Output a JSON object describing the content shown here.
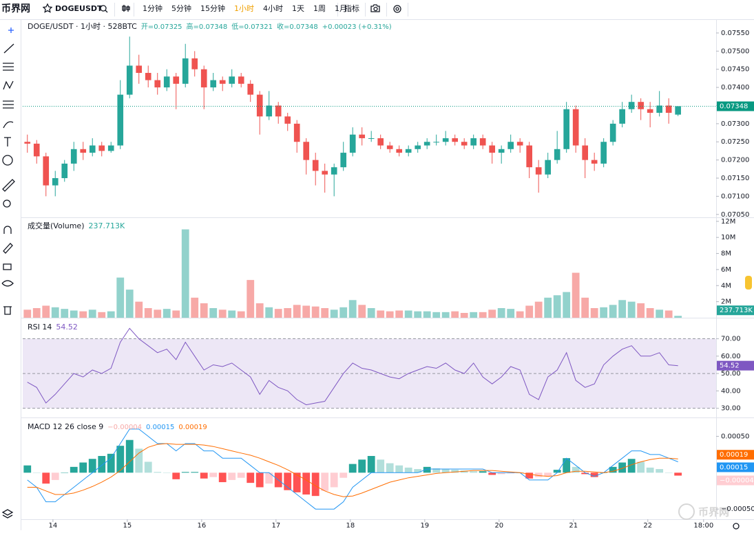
{
  "toolbar": {
    "logo": "币界网",
    "symbol": "DOGEUSDT",
    "intervals": [
      "1分钟",
      "5分钟",
      "15分钟",
      "1小时",
      "4小时",
      "1天",
      "1周",
      "1月"
    ],
    "active_interval": 3,
    "active_color": "#f0a000",
    "indicators": "指标"
  },
  "watermark": "币界网",
  "chart_data": [
    {
      "type": "candlestick",
      "title": "DOGE/USDT · 1小时 · 528BTC",
      "ohlc_text": [
        "开=0.07325",
        "高=0.07348",
        "低=0.07321",
        "收=0.07348",
        "+0.00023 (+0.31%)"
      ],
      "up_color": "#26a69a",
      "down_color": "#ef5350",
      "candles": [
        [
          0.0725,
          0.0727,
          0.0722,
          0.07245
        ],
        [
          0.07245,
          0.07255,
          0.0719,
          0.0721
        ],
        [
          0.0721,
          0.0722,
          0.071,
          0.0713
        ],
        [
          0.0713,
          0.0717,
          0.071,
          0.0715
        ],
        [
          0.0715,
          0.072,
          0.0714,
          0.0719
        ],
        [
          0.0719,
          0.0725,
          0.0717,
          0.0723
        ],
        [
          0.0723,
          0.0725,
          0.072,
          0.0722
        ],
        [
          0.0722,
          0.0726,
          0.0721,
          0.0724
        ],
        [
          0.0724,
          0.0725,
          0.0721,
          0.07225
        ],
        [
          0.07225,
          0.0725,
          0.0722,
          0.0724
        ],
        [
          0.0724,
          0.0742,
          0.0723,
          0.0738
        ],
        [
          0.0738,
          0.0754,
          0.0737,
          0.0746
        ],
        [
          0.0746,
          0.0749,
          0.0741,
          0.0744
        ],
        [
          0.0744,
          0.0746,
          0.074,
          0.0742
        ],
        [
          0.0742,
          0.0744,
          0.0738,
          0.074
        ],
        [
          0.074,
          0.0745,
          0.0739,
          0.0743
        ],
        [
          0.0743,
          0.0744,
          0.0734,
          0.0741
        ],
        [
          0.0741,
          0.0752,
          0.074,
          0.0748
        ],
        [
          0.0748,
          0.075,
          0.0743,
          0.0745
        ],
        [
          0.0745,
          0.0746,
          0.0734,
          0.074
        ],
        [
          0.074,
          0.0744,
          0.0739,
          0.0742
        ],
        [
          0.0742,
          0.0743,
          0.0739,
          0.0741
        ],
        [
          0.0741,
          0.0745,
          0.074,
          0.0743
        ],
        [
          0.0743,
          0.0744,
          0.074,
          0.0741
        ],
        [
          0.0741,
          0.0742,
          0.0736,
          0.0738
        ],
        [
          0.0738,
          0.0739,
          0.0727,
          0.0732
        ],
        [
          0.0732,
          0.0739,
          0.0731,
          0.0735
        ],
        [
          0.0735,
          0.0736,
          0.073,
          0.0732
        ],
        [
          0.0732,
          0.0733,
          0.0728,
          0.073
        ],
        [
          0.073,
          0.0731,
          0.0722,
          0.0725
        ],
        [
          0.0725,
          0.0726,
          0.0716,
          0.072
        ],
        [
          0.072,
          0.0722,
          0.0713,
          0.0717
        ],
        [
          0.0717,
          0.0719,
          0.0711,
          0.0716
        ],
        [
          0.0716,
          0.0719,
          0.071,
          0.0718
        ],
        [
          0.0718,
          0.0725,
          0.0717,
          0.0722
        ],
        [
          0.0722,
          0.0729,
          0.0721,
          0.0727
        ],
        [
          0.0727,
          0.0729,
          0.0724,
          0.0726
        ],
        [
          0.0726,
          0.0728,
          0.0725,
          0.0726
        ],
        [
          0.0726,
          0.0727,
          0.0723,
          0.0724
        ],
        [
          0.0724,
          0.0725,
          0.0722,
          0.0723
        ],
        [
          0.0723,
          0.0724,
          0.0721,
          0.0722
        ],
        [
          0.0722,
          0.0724,
          0.0721,
          0.0723
        ],
        [
          0.0723,
          0.0725,
          0.0722,
          0.0724
        ],
        [
          0.0724,
          0.0726,
          0.0723,
          0.0725
        ],
        [
          0.0725,
          0.0727,
          0.0724,
          0.0725
        ],
        [
          0.0725,
          0.0728,
          0.0724,
          0.0726
        ],
        [
          0.0726,
          0.0727,
          0.0724,
          0.0725
        ],
        [
          0.0725,
          0.0726,
          0.0723,
          0.0724
        ],
        [
          0.0724,
          0.0727,
          0.0723,
          0.0726
        ],
        [
          0.0726,
          0.0727,
          0.0723,
          0.0724
        ],
        [
          0.0724,
          0.0725,
          0.0719,
          0.0722
        ],
        [
          0.0722,
          0.0724,
          0.0719,
          0.0723
        ],
        [
          0.0723,
          0.0727,
          0.0722,
          0.0725
        ],
        [
          0.0725,
          0.0726,
          0.0722,
          0.0724
        ],
        [
          0.0724,
          0.0725,
          0.0715,
          0.0718
        ],
        [
          0.0718,
          0.072,
          0.0711,
          0.0716
        ],
        [
          0.0716,
          0.0722,
          0.0715,
          0.072
        ],
        [
          0.072,
          0.0728,
          0.0719,
          0.0723
        ],
        [
          0.0723,
          0.0736,
          0.0722,
          0.0734
        ],
        [
          0.0734,
          0.0735,
          0.0722,
          0.0724
        ],
        [
          0.0724,
          0.0726,
          0.0715,
          0.072
        ],
        [
          0.072,
          0.0722,
          0.0717,
          0.0719
        ],
        [
          0.0719,
          0.0726,
          0.0718,
          0.0725
        ],
        [
          0.0725,
          0.0731,
          0.0724,
          0.073
        ],
        [
          0.073,
          0.0736,
          0.0729,
          0.0734
        ],
        [
          0.0734,
          0.0738,
          0.0733,
          0.0736
        ],
        [
          0.0736,
          0.0737,
          0.0731,
          0.0734
        ],
        [
          0.0734,
          0.0736,
          0.0729,
          0.0733
        ],
        [
          0.0733,
          0.0739,
          0.0732,
          0.0735
        ],
        [
          0.0735,
          0.0737,
          0.073,
          0.0733
        ],
        [
          0.07325,
          0.07348,
          0.07321,
          0.07348
        ]
      ],
      "ylim": [
        0.07042,
        0.07584
      ],
      "yticks": [
        {
          "value": 0.0705,
          "label": "0.07050"
        },
        {
          "value": 0.071,
          "label": "0.07100"
        },
        {
          "value": 0.0715,
          "label": "0.07150"
        },
        {
          "value": 0.072,
          "label": "0.07200"
        },
        {
          "value": 0.0725,
          "label": "0.07250"
        },
        {
          "value": 0.073,
          "label": "0.07300"
        },
        {
          "value": 0.0735,
          "label": "0.07350"
        },
        {
          "value": 0.074,
          "label": "0.07400"
        },
        {
          "value": 0.0745,
          "label": "0.07450"
        },
        {
          "value": 0.075,
          "label": "0.07500"
        },
        {
          "value": 0.0755,
          "label": "0.07550"
        }
      ],
      "last_price": {
        "value": 0.07348,
        "label": "0.07348"
      },
      "last_color": "#089981"
    },
    {
      "type": "bar",
      "title": "成交量(Volume)",
      "last_label": "237.713K",
      "up_color": "#92d2cc",
      "down_color": "#f7a9a7",
      "label_color": "#26a69a",
      "values": [
        1.0,
        1.2,
        1.5,
        1.3,
        1.1,
        0.9,
        0.8,
        1.0,
        0.7,
        0.8,
        5.0,
        3.5,
        2.0,
        1.2,
        1.0,
        1.1,
        0.9,
        11.0,
        2.5,
        1.8,
        1.2,
        1.0,
        0.9,
        0.8,
        4.7,
        1.8,
        1.3,
        1.1,
        1.2,
        1.6,
        1.5,
        1.4,
        1.2,
        1.0,
        1.3,
        2.2,
        1.6,
        1.2,
        0.9,
        0.8,
        0.9,
        0.9,
        0.8,
        0.8,
        0.7,
        0.7,
        0.8,
        0.6,
        0.7,
        0.7,
        1.0,
        1.2,
        1.1,
        0.8,
        1.5,
        2.0,
        2.5,
        2.8,
        3.2,
        5.6,
        2.5,
        1.2,
        1.3,
        1.6,
        2.2,
        2.0,
        1.8,
        1.2,
        1.0,
        0.9,
        0.237713
      ],
      "ylim": [
        0,
        12.5
      ],
      "yticks": [
        {
          "value": 2,
          "label": "2M"
        },
        {
          "value": 4,
          "label": "4M"
        },
        {
          "value": 6,
          "label": "6M"
        },
        {
          "value": 8,
          "label": "8M"
        },
        {
          "value": 10,
          "label": "10M"
        },
        {
          "value": 12,
          "label": "12M"
        }
      ]
    },
    {
      "type": "line",
      "title": "RSI 14",
      "last_label": "54.52",
      "color": "#7e57c2",
      "band_color": "#ede7f6",
      "band": [
        30,
        70
      ],
      "levels": [
        30,
        50,
        70
      ],
      "values": [
        45,
        42,
        33,
        38,
        44,
        50,
        48,
        52,
        50,
        53,
        68,
        76,
        70,
        66,
        62,
        64,
        58,
        68,
        60,
        52,
        55,
        54,
        56,
        52,
        48,
        38,
        46,
        42,
        40,
        35,
        32,
        33,
        34,
        42,
        50,
        56,
        53,
        52,
        50,
        48,
        47,
        50,
        52,
        54,
        53,
        56,
        52,
        50,
        56,
        48,
        44,
        48,
        54,
        52,
        38,
        35,
        48,
        52,
        62,
        46,
        42,
        44,
        55,
        60,
        64,
        66,
        60,
        60,
        62,
        55,
        54.52
      ],
      "ylim": [
        24.7,
        81.7
      ],
      "yticks": [
        {
          "value": 30,
          "label": "30.00"
        },
        {
          "value": 40,
          "label": "40.00"
        },
        {
          "value": 50,
          "label": "50.00"
        },
        {
          "value": 60,
          "label": "60.00"
        },
        {
          "value": 70,
          "label": "70.00"
        }
      ]
    },
    {
      "type": "macd",
      "title": "MACD 12 26 close 9",
      "histogram": {
        "label": "−0.00004",
        "color": "#f7a9a7",
        "colors": [
          "#26a69a",
          "#b2dfdb",
          "#ff5252",
          "#ffcdd2"
        ],
        "values": [
          0.0001,
          0,
          -0.00015,
          -0.0001,
          0,
          8e-05,
          0.00014,
          0.00019,
          0.00023,
          0.00026,
          0.00037,
          0.00045,
          0.00033,
          0.00015,
          1e-05,
          0,
          -9e-05,
          1e-05,
          1e-05,
          -8e-05,
          -6e-05,
          -0.00013,
          -0.0001,
          -7e-05,
          -0.00014,
          -0.0002,
          -0.00015,
          -0.0002,
          -0.00024,
          -0.00027,
          -0.0003,
          -0.00032,
          -0.00025,
          -0.0002,
          -7e-05,
          0.00012,
          0.00018,
          0.00023,
          0.00018,
          0.00013,
          0.0001,
          7e-05,
          5e-05,
          8e-05,
          6e-05,
          5e-05,
          4e-05,
          3e-05,
          2e-05,
          2e-05,
          -3e-05,
          -2e-05,
          -1e-05,
          0,
          -8e-05,
          -6e-05,
          -5e-05,
          4e-05,
          0.0002,
          8e-05,
          -2e-05,
          -6e-05,
          0,
          8e-05,
          0.00014,
          0.00019,
          0.00015,
          7e-05,
          5e-05,
          0,
          -4e-05
        ]
      },
      "macd": {
        "label": "0.00015",
        "color": "#2196f3",
        "values": [
          -0.0001,
          -0.0002,
          -0.0004,
          -0.0004,
          -0.0003,
          -0.0002,
          -0.0001,
          0,
          0.0001,
          0.0002,
          0.0004,
          0.0006,
          0.0006,
          0.0005,
          0.0004,
          0.0004,
          0.0003,
          0.0004,
          0.0004,
          0.0003,
          0.0003,
          0.0002,
          0.0002,
          0.0002,
          0.0001,
          0,
          0,
          -0.0001,
          -0.0002,
          -0.0003,
          -0.0004,
          -0.0005,
          -0.0005,
          -0.0005,
          -0.0004,
          -0.0002,
          -0.0001,
          0,
          0,
          0,
          0,
          0,
          0,
          5e-05,
          5e-05,
          5e-05,
          5e-05,
          5e-05,
          5e-05,
          5e-05,
          0,
          0,
          0,
          0,
          -0.0001,
          -0.0001,
          -0.0001,
          0,
          0.0002,
          0.0001,
          0,
          -5e-05,
          0,
          0.0001,
          0.0002,
          0.0003,
          0.0003,
          0.00025,
          0.00025,
          0.0002,
          0.00015
        ]
      },
      "signal": {
        "label": "0.00019",
        "color": "#ff6d00",
        "values": [
          -0.0002,
          -0.0002,
          -0.00025,
          -0.0003,
          -0.0003,
          -0.00028,
          -0.00024,
          -0.00019,
          -0.00013,
          -6e-05,
          3e-05,
          0.00015,
          0.00027,
          0.00035,
          0.00039,
          0.0004,
          0.00039,
          0.00039,
          0.00039,
          0.00038,
          0.00036,
          0.00033,
          0.0003,
          0.00027,
          0.00024,
          0.0002,
          0.00015,
          0.0001,
          4e-05,
          -3e-05,
          -0.0001,
          -0.00018,
          -0.00025,
          -0.0003,
          -0.00033,
          -0.00032,
          -0.00028,
          -0.00023,
          -0.00018,
          -0.00013,
          -0.0001,
          -7e-05,
          -5e-05,
          -3e-05,
          -1e-05,
          0,
          1e-05,
          2e-05,
          3e-05,
          3e-05,
          3e-05,
          2e-05,
          1e-05,
          0,
          -2e-05,
          -4e-05,
          -5e-05,
          -4e-05,
          0,
          2e-05,
          2e-05,
          1e-05,
          0,
          2e-05,
          6e-05,
          0.00011,
          0.00015,
          0.00018,
          0.0002,
          0.0002,
          0.00019
        ]
      },
      "ylim": [
        -0.00064,
        0.00075
      ],
      "yticks": [
        {
          "value": -0.0005,
          "label": "−0.00050"
        },
        {
          "value": 0.0005,
          "label": "0.00050"
        }
      ],
      "xlim": [
        -0.5,
        74.1
      ],
      "xticks": [
        {
          "value": 2.75,
          "label": "14"
        },
        {
          "value": 10.75,
          "label": "15"
        },
        {
          "value": 18.75,
          "label": "16"
        },
        {
          "value": 26.75,
          "label": "17"
        },
        {
          "value": 34.75,
          "label": "18"
        },
        {
          "value": 42.75,
          "label": "19"
        },
        {
          "value": 50.75,
          "label": "20"
        },
        {
          "value": 58.75,
          "label": "21"
        },
        {
          "value": 66.75,
          "label": "22"
        },
        {
          "value": 72.75,
          "label": "18:00"
        }
      ]
    }
  ]
}
